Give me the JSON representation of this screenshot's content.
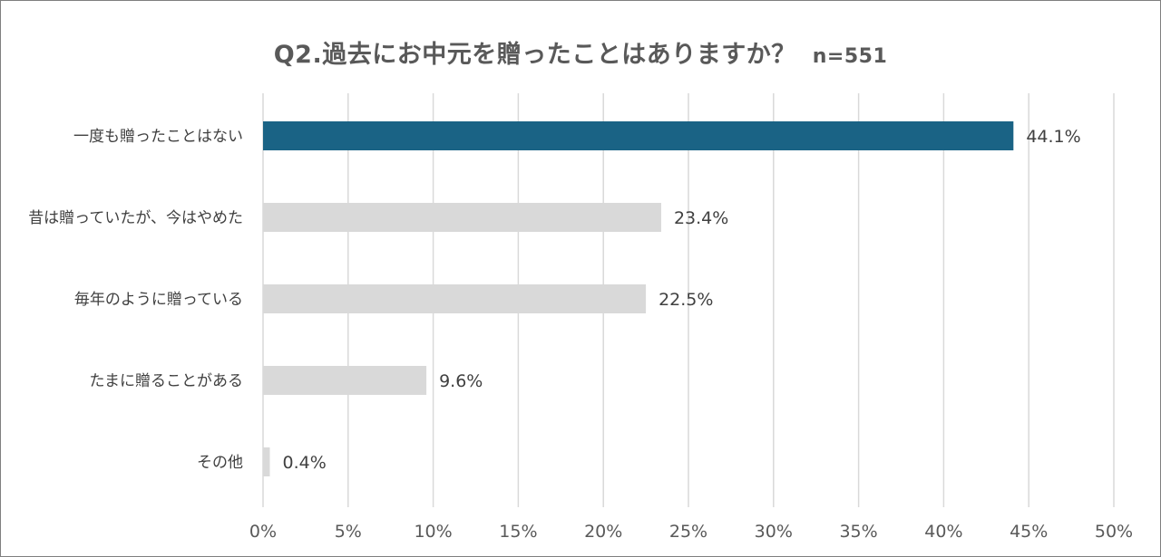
{
  "chart_data": {
    "type": "bar",
    "orientation": "horizontal",
    "title": "Q2.過去にお中元を贈ったことはありますか？",
    "subtitle": "n=551",
    "categories": [
      "一度も贈ったことはない",
      "昔は贈っていたが、今はやめた",
      "毎年のように贈っている",
      "たまに贈ることがある",
      "その他"
    ],
    "values": [
      44.1,
      23.4,
      22.5,
      9.6,
      0.4
    ],
    "value_labels": [
      "44.1%",
      "23.4%",
      "22.5%",
      "9.6%",
      "0.4%"
    ],
    "xlim": [
      0,
      50
    ],
    "x_ticks": [
      "0%",
      "5%",
      "10%",
      "15%",
      "20%",
      "25%",
      "30%",
      "35%",
      "40%",
      "45%",
      "50%"
    ],
    "grid": true,
    "colors": {
      "highlight": "#1a6385",
      "default": "#d9d9d9",
      "grid": "#d9d9d9"
    }
  }
}
